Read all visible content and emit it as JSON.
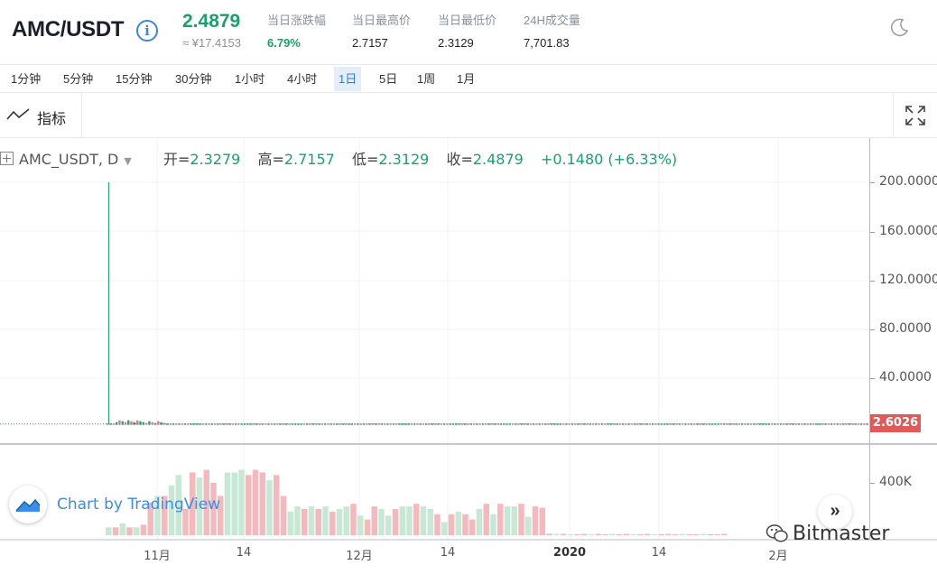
{
  "header": {
    "pair": "AMC/USDT",
    "info_icon": "info-circle-icon",
    "last_price": "2.4879",
    "cny_price": "≈ ¥17.4153",
    "stats": [
      {
        "label": "当日涨跌幅",
        "value": "6.79%",
        "up": true
      },
      {
        "label": "当日最高价",
        "value": "2.7157",
        "up": false
      },
      {
        "label": "当日最低价",
        "value": "2.3129",
        "up": false
      },
      {
        "label": "24H成交量",
        "value": "7,701.83",
        "up": false
      }
    ],
    "theme_icon": "moon-icon"
  },
  "intervals": [
    "1分钟",
    "5分钟",
    "15分钟",
    "30分钟",
    "1小时",
    "4小时",
    "1日",
    "5日",
    "1周",
    "1月"
  ],
  "active_interval": "1日",
  "toolbar": {
    "indicators_label": "指标",
    "indicators_icon": "trend-line-icon",
    "fullscreen_icon": "fullscreen-icon"
  },
  "legend": {
    "symbol": "AMC_USDT, D",
    "open_label": "开=",
    "open": "2.3279",
    "high_label": "高=",
    "high": "2.7157",
    "low_label": "低=",
    "low": "2.3129",
    "close_label": "收=",
    "close": "2.4879",
    "change": "+0.1480 (+6.33%)"
  },
  "chart_data": {
    "type": "candlestick",
    "price_axis_labels": [
      "200.0000",
      "160.0000",
      "120.0000",
      "80.0000",
      "40.0000"
    ],
    "price_axis_values": [
      200,
      160,
      120,
      80,
      40
    ],
    "volume_axis_labels": [
      "400K"
    ],
    "volume_axis_values": [
      400000
    ],
    "current_price_label": "2.6026",
    "current_price": 2.6026,
    "x_labels": [
      {
        "text": "11月",
        "bold": false
      },
      {
        "text": "14",
        "bold": false
      },
      {
        "text": "12月",
        "bold": false
      },
      {
        "text": "14",
        "bold": false
      },
      {
        "text": "2020",
        "bold": true
      },
      {
        "text": "14",
        "bold": false
      },
      {
        "text": "2月",
        "bold": false
      }
    ],
    "spike_high": 200,
    "volume_bars": [
      [
        60000,
        1
      ],
      [
        60000,
        0
      ],
      [
        90000,
        1
      ],
      [
        60000,
        0
      ],
      [
        60000,
        1
      ],
      [
        80000,
        0
      ],
      [
        250000,
        0
      ],
      [
        300000,
        1
      ],
      [
        300000,
        0
      ],
      [
        380000,
        1
      ],
      [
        460000,
        1
      ],
      [
        200000,
        0
      ],
      [
        480000,
        0
      ],
      [
        440000,
        1
      ],
      [
        500000,
        0
      ],
      [
        400000,
        0
      ],
      [
        300000,
        0
      ],
      [
        480000,
        1
      ],
      [
        480000,
        1
      ],
      [
        500000,
        1
      ],
      [
        460000,
        0
      ],
      [
        500000,
        0
      ],
      [
        480000,
        0
      ],
      [
        420000,
        1
      ],
      [
        460000,
        0
      ],
      [
        300000,
        0
      ],
      [
        180000,
        1
      ],
      [
        220000,
        1
      ],
      [
        200000,
        0
      ],
      [
        220000,
        1
      ],
      [
        200000,
        0
      ],
      [
        220000,
        1
      ],
      [
        180000,
        0
      ],
      [
        200000,
        1
      ],
      [
        220000,
        1
      ],
      [
        240000,
        0
      ],
      [
        150000,
        1
      ],
      [
        120000,
        0
      ],
      [
        220000,
        0
      ],
      [
        200000,
        1
      ],
      [
        150000,
        1
      ],
      [
        200000,
        0
      ],
      [
        220000,
        1
      ],
      [
        220000,
        1
      ],
      [
        240000,
        0
      ],
      [
        220000,
        1
      ],
      [
        200000,
        1
      ],
      [
        160000,
        0
      ],
      [
        100000,
        1
      ],
      [
        160000,
        0
      ],
      [
        180000,
        1
      ],
      [
        160000,
        0
      ],
      [
        120000,
        0
      ],
      [
        200000,
        1
      ],
      [
        240000,
        0
      ],
      [
        160000,
        1
      ],
      [
        240000,
        0
      ],
      [
        220000,
        1
      ],
      [
        220000,
        1
      ],
      [
        240000,
        0
      ],
      [
        140000,
        1
      ],
      [
        220000,
        0
      ],
      [
        210000,
        0
      ],
      [
        12000,
        0
      ],
      [
        10000,
        1
      ],
      [
        10000,
        0
      ],
      [
        8000,
        1
      ],
      [
        8000,
        0
      ],
      [
        10000,
        0
      ],
      [
        8000,
        1
      ],
      [
        10000,
        0
      ],
      [
        8000,
        0
      ],
      [
        10000,
        1
      ],
      [
        8000,
        0
      ],
      [
        10000,
        0
      ],
      [
        8000,
        1
      ],
      [
        8000,
        0
      ],
      [
        10000,
        0
      ],
      [
        8000,
        1
      ],
      [
        8000,
        0
      ],
      [
        10000,
        0
      ],
      [
        8000,
        0
      ],
      [
        10000,
        1
      ],
      [
        8000,
        0
      ],
      [
        8000,
        0
      ],
      [
        10000,
        1
      ],
      [
        8000,
        0
      ],
      [
        8000,
        0
      ],
      [
        10000,
        0
      ]
    ]
  },
  "tradingview": {
    "label": "Chart by TradingView"
  },
  "watermark": "Bitmaster"
}
